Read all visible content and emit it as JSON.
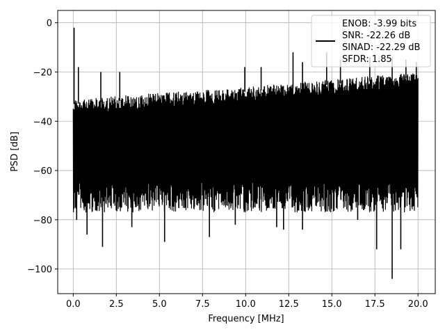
{
  "chart_data": {
    "type": "line",
    "title": "",
    "xlabel": "Frequency [MHz]",
    "ylabel": "PSD [dB]",
    "xlim": [
      -0.9,
      21.0
    ],
    "ylim": [
      -110,
      5
    ],
    "x_ticks": [
      0.0,
      2.5,
      5.0,
      7.5,
      10.0,
      12.5,
      15.0,
      17.5,
      20.0
    ],
    "x_tick_labels": [
      "0.0",
      "2.5",
      "5.0",
      "7.5",
      "10.0",
      "12.5",
      "15.0",
      "17.5",
      "20.0"
    ],
    "y_ticks": [
      0,
      -20,
      -40,
      -60,
      -80,
      -100
    ],
    "y_tick_labels": [
      "0",
      "−20",
      "−40",
      "−60",
      "−80",
      "−100"
    ],
    "grid": true,
    "legend_position": "top-right",
    "series": [
      {
        "color": "#000000",
        "x_range": [
          0.0,
          20.0
        ],
        "noise_floor": {
          "start": -31,
          "mid": -26,
          "end": -20
        },
        "noise_band_low": -65,
        "peaks": [
          {
            "x": 0.05,
            "y": -2
          },
          {
            "x": 12.75,
            "y": -12
          },
          {
            "x": 13.3,
            "y": -16
          },
          {
            "x": 9.95,
            "y": -18
          },
          {
            "x": 10.9,
            "y": -18
          },
          {
            "x": 2.7,
            "y": -20
          },
          {
            "x": 0.3,
            "y": -18
          },
          {
            "x": 1.6,
            "y": -20
          },
          {
            "x": 14.7,
            "y": -12
          },
          {
            "x": 15.5,
            "y": -15
          },
          {
            "x": 17.2,
            "y": -14
          },
          {
            "x": 18.5,
            "y": -14
          },
          {
            "x": 19.3,
            "y": -15
          },
          {
            "x": 19.9,
            "y": -16
          }
        ],
        "dips": [
          {
            "x": 18.5,
            "y": -104
          },
          {
            "x": 1.7,
            "y": -91
          },
          {
            "x": 5.3,
            "y": -89
          },
          {
            "x": 17.6,
            "y": -92
          },
          {
            "x": 19.0,
            "y": -92
          },
          {
            "x": 0.8,
            "y": -86
          },
          {
            "x": 7.9,
            "y": -87
          },
          {
            "x": 12.2,
            "y": -84
          },
          {
            "x": 13.3,
            "y": -84
          },
          {
            "x": 0.2,
            "y": -80
          },
          {
            "x": 3.4,
            "y": -83
          },
          {
            "x": 9.4,
            "y": -82
          },
          {
            "x": 11.8,
            "y": -83
          },
          {
            "x": 16.5,
            "y": -80
          }
        ]
      }
    ],
    "legend": {
      "lines": [
        "ENOB: -3.99 bits",
        "SNR: -22.26 dB",
        "SINAD: -22.29 dB",
        "SFDR: 1.85"
      ]
    }
  }
}
